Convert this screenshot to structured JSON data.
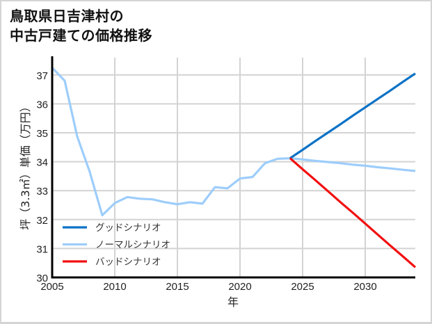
{
  "title": {
    "line1": "鳥取県日吉津村の",
    "line2": "中古戸建ての価格推移"
  },
  "colors": {
    "good": "#0b72c6",
    "normal": "#9dcdfb",
    "bad": "#f20f0f",
    "grid": "#d3d3d3",
    "axis": "#000000"
  },
  "chart_data": {
    "type": "line",
    "title": "鳥取県日吉津村の中古戸建ての価格推移",
    "xlabel": "年",
    "ylabel": "坪（3.3㎡）単価（万円）",
    "xlim": [
      2005,
      2034
    ],
    "ylim": [
      30,
      37.6
    ],
    "xticks": [
      2005,
      2010,
      2015,
      2020,
      2025,
      2030
    ],
    "yticks": [
      30,
      31,
      32,
      33,
      34,
      35,
      36,
      37
    ],
    "grid": true,
    "legend_position": "lower left",
    "legend": [
      "グッドシナリオ",
      "ノーマルシナリオ",
      "バッドシナリオ"
    ],
    "series": [
      {
        "name": "ノーマルシナリオ",
        "color": "#9dcdfb",
        "x": [
          2005,
          2006,
          2007,
          2008,
          2009,
          2010,
          2011,
          2012,
          2013,
          2014,
          2015,
          2016,
          2017,
          2018,
          2019,
          2020,
          2021,
          2022,
          2023,
          2024,
          2025,
          2026,
          2027,
          2028,
          2029,
          2030,
          2031,
          2032,
          2033,
          2034
        ],
        "values": [
          37.25,
          36.8,
          34.87,
          33.65,
          32.15,
          32.57,
          32.78,
          32.72,
          32.7,
          32.6,
          32.53,
          32.6,
          32.55,
          33.12,
          33.08,
          33.42,
          33.47,
          33.95,
          34.1,
          34.12,
          34.08,
          34.03,
          33.99,
          33.95,
          33.9,
          33.86,
          33.81,
          33.77,
          33.72,
          33.68
        ]
      },
      {
        "name": "グッドシナリオ",
        "color": "#0b72c6",
        "x": [
          2024,
          2025,
          2026,
          2027,
          2028,
          2029,
          2030,
          2031,
          2032,
          2033,
          2034
        ],
        "values": [
          34.12,
          34.41,
          34.71,
          35.0,
          35.29,
          35.59,
          35.88,
          36.17,
          36.46,
          36.76,
          37.05
        ]
      },
      {
        "name": "バッドシナリオ",
        "color": "#f20f0f",
        "x": [
          2024,
          2025,
          2026,
          2027,
          2028,
          2029,
          2030,
          2031,
          2032,
          2033,
          2034
        ],
        "values": [
          34.12,
          33.74,
          33.37,
          32.99,
          32.61,
          32.24,
          31.86,
          31.48,
          31.1,
          30.73,
          30.35
        ]
      }
    ]
  }
}
